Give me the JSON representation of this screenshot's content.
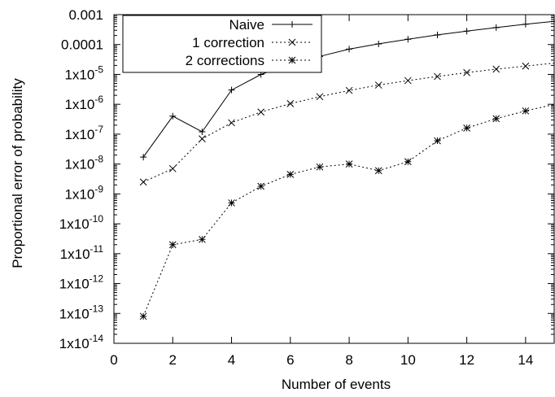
{
  "chart_data": {
    "type": "line",
    "title": "",
    "xlabel": "Number of events",
    "ylabel": "Proportional error of probability",
    "xlim": [
      0,
      15
    ],
    "ylim": [
      1e-14,
      0.001
    ],
    "y_scale": "log",
    "grid": false,
    "legend_position": "top-left",
    "x_ticks": [
      {
        "value": 0,
        "label": "0"
      },
      {
        "value": 2,
        "label": "2"
      },
      {
        "value": 4,
        "label": "4"
      },
      {
        "value": 6,
        "label": "6"
      },
      {
        "value": 8,
        "label": "8"
      },
      {
        "value": 10,
        "label": "10"
      },
      {
        "value": 12,
        "label": "12"
      },
      {
        "value": 14,
        "label": "14"
      }
    ],
    "y_ticks": [
      {
        "value": 1e-14,
        "base": "1x10",
        "exp": "-14",
        "label": ""
      },
      {
        "value": 1e-13,
        "base": "1x10",
        "exp": "-13",
        "label": ""
      },
      {
        "value": 1e-12,
        "base": "1x10",
        "exp": "-12",
        "label": ""
      },
      {
        "value": 1e-11,
        "base": "1x10",
        "exp": "-11",
        "label": ""
      },
      {
        "value": 1e-10,
        "base": "1x10",
        "exp": "-10",
        "label": ""
      },
      {
        "value": 1e-09,
        "base": "1x10",
        "exp": "-9",
        "label": ""
      },
      {
        "value": 1e-08,
        "base": "1x10",
        "exp": "-8",
        "label": ""
      },
      {
        "value": 1e-07,
        "base": "1x10",
        "exp": "-7",
        "label": ""
      },
      {
        "value": 1e-06,
        "base": "1x10",
        "exp": "-6",
        "label": ""
      },
      {
        "value": 1e-05,
        "base": "1x10",
        "exp": "-5",
        "label": ""
      },
      {
        "value": 0.0001,
        "base": "",
        "exp": "",
        "label": "0.0001"
      },
      {
        "value": 0.001,
        "base": "",
        "exp": "",
        "label": "0.001"
      }
    ],
    "series": [
      {
        "name": "Naive",
        "marker": "plus",
        "dash": "solid",
        "x": [
          1,
          2,
          3,
          4,
          5,
          6,
          7,
          8,
          9,
          10,
          11,
          12,
          13,
          14,
          15
        ],
        "y": [
          1.7e-08,
          4e-07,
          1.2e-07,
          3e-06,
          1e-05,
          2.2e-05,
          4e-05,
          7e-05,
          0.000105,
          0.00015,
          0.00021,
          0.00028,
          0.00037,
          0.00048,
          0.0006
        ]
      },
      {
        "name": "1 correction",
        "marker": "cross",
        "dash": "dotted",
        "x": [
          1,
          2,
          3,
          4,
          5,
          6,
          7,
          8,
          9,
          10,
          11,
          12,
          13,
          14,
          15
        ],
        "y": [
          2.5e-09,
          7e-09,
          7e-08,
          2.4e-07,
          5.5e-07,
          1.05e-06,
          1.8e-06,
          2.9e-06,
          4.4e-06,
          6.2e-06,
          8.5e-06,
          1.15e-05,
          1.5e-05,
          1.9e-05,
          2.4e-05
        ]
      },
      {
        "name": "2 corrections",
        "marker": "star",
        "dash": "dotted",
        "x": [
          1,
          2,
          3,
          4,
          5,
          6,
          7,
          8,
          9,
          10,
          11,
          12,
          13,
          14,
          15
        ],
        "y": [
          8e-14,
          2e-11,
          3e-11,
          5e-10,
          1.8e-09,
          4.5e-09,
          8e-09,
          1e-08,
          6e-09,
          1.2e-08,
          6e-08,
          1.6e-07,
          3.3e-07,
          6e-07,
          1e-06
        ]
      }
    ]
  }
}
